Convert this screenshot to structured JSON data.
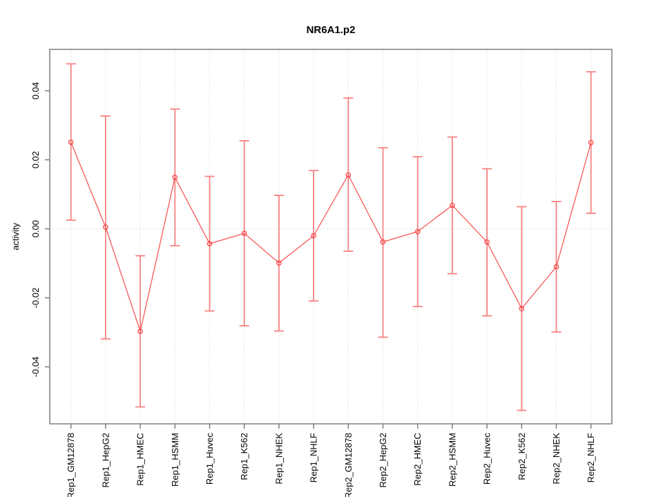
{
  "window": {
    "title": "NR6A1.p2"
  },
  "chart_data": {
    "type": "scatter",
    "title": "NR6A1.p2",
    "xlabel": "",
    "ylabel": "activity",
    "categories": [
      "Rep1_GM12878",
      "Rep1_HepG2",
      "Rep1_HMEC",
      "Rep1_HSMM",
      "Rep1_Huvec",
      "Rep1_K562",
      "Rep1_NHEK",
      "Rep1_NHLF",
      "Rep2_GM12878",
      "Rep2_HepG2",
      "Rep2_HMEC",
      "Rep2_HSMM",
      "Rep2_Huvec",
      "Rep2_K562",
      "Rep2_NHEK",
      "Rep2_NHLF"
    ],
    "series": [
      {
        "name": "activity",
        "values": [
          0.0251,
          0.0005,
          -0.0297,
          0.0149,
          -0.0043,
          -0.0013,
          -0.0099,
          -0.002,
          0.0156,
          -0.0038,
          -0.0008,
          0.0068,
          -0.0038,
          -0.0231,
          -0.011,
          0.025
        ],
        "upper": [
          0.0478,
          0.0327,
          -0.0078,
          0.0347,
          0.0152,
          0.0255,
          0.0097,
          0.0169,
          0.0379,
          0.0235,
          0.0209,
          0.0266,
          0.0174,
          0.0064,
          0.0079,
          0.0455
        ],
        "lower": [
          0.0025,
          -0.0319,
          -0.0516,
          -0.0049,
          -0.0238,
          -0.0281,
          -0.0296,
          -0.0209,
          -0.0065,
          -0.0314,
          -0.0225,
          -0.013,
          -0.0252,
          -0.0526,
          -0.0299,
          0.0045
        ]
      }
    ],
    "ytick_labels": [
      "-0.04",
      "-0.02",
      "0.00",
      "0.02",
      "0.04"
    ],
    "ytick_values": [
      -0.04,
      -0.02,
      0,
      0.02,
      0.04
    ],
    "ylim": [
      -0.0565,
      0.052
    ],
    "zero_line": 0,
    "grid": {
      "vertical": "dotted-at-each-category",
      "horizontal": "dotted-at-zero"
    },
    "legend": "none",
    "colors": {
      "point_line": "#f84b4b",
      "error_bar": "#f98282",
      "grid": "#d6d6d6",
      "frame": "#7d7d7d",
      "text": "#000000",
      "background": "#ffffff"
    }
  }
}
